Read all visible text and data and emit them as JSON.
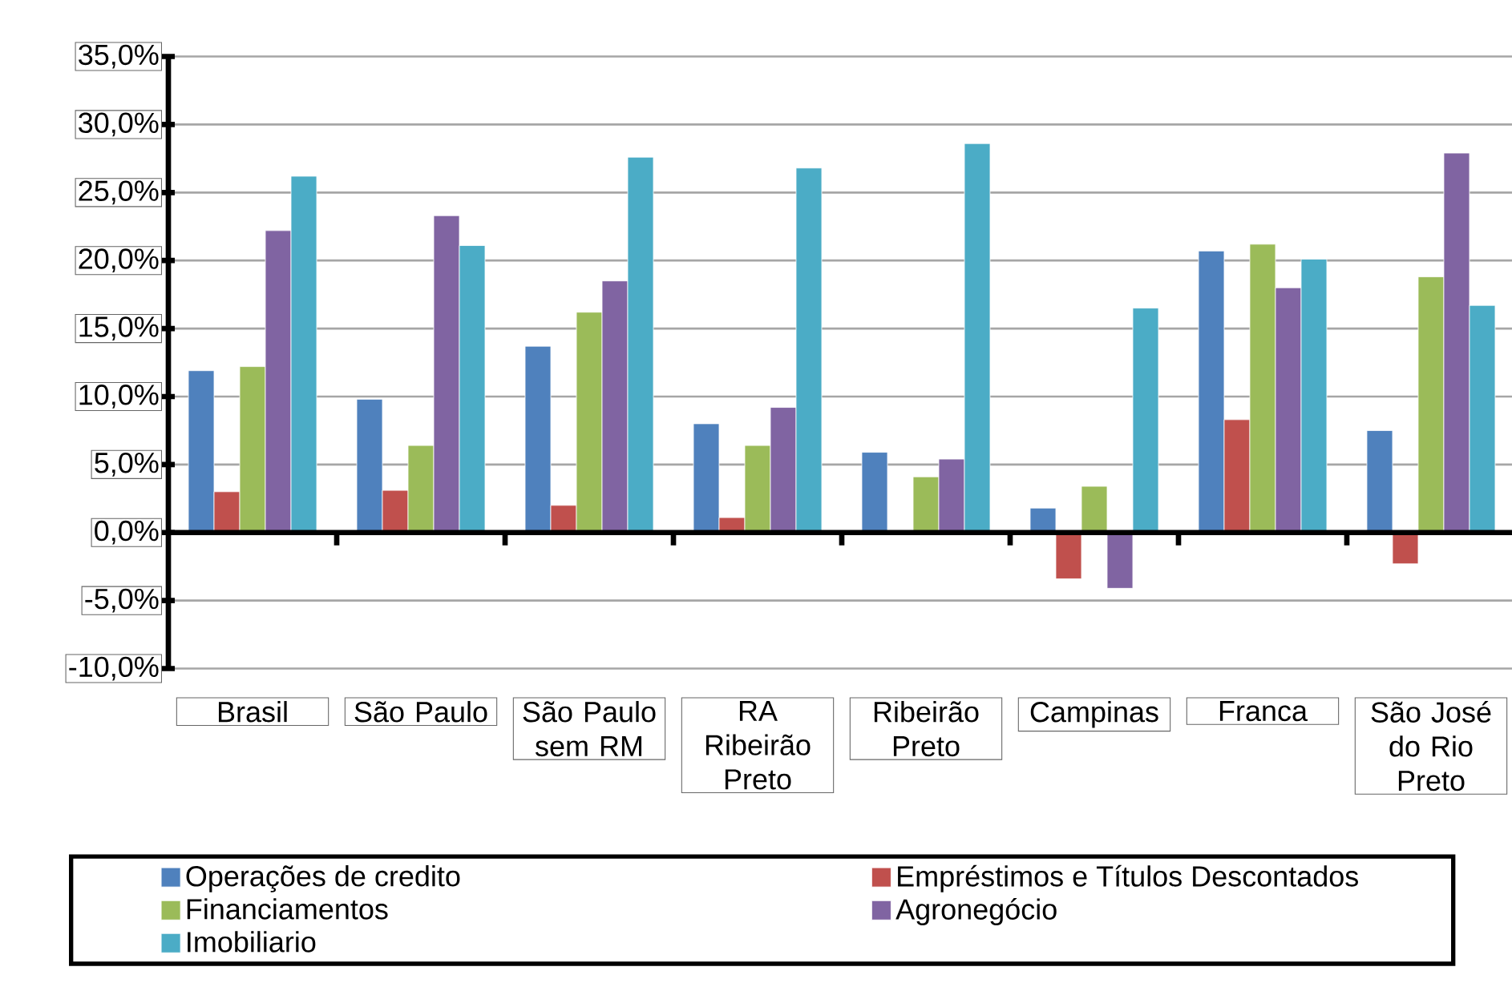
{
  "chart_data": {
    "type": "bar",
    "categories": [
      "Brasil",
      "São Paulo",
      "São Paulo sem RM",
      "RA Ribeirão Preto",
      "Ribeirão Preto",
      "Campinas",
      "Franca",
      "São José do Rio Preto"
    ],
    "series": [
      {
        "name": "Operações de credito",
        "color": "#4f81bd",
        "values": [
          11.9,
          9.8,
          13.7,
          8.0,
          5.9,
          1.8,
          20.7,
          7.5
        ]
      },
      {
        "name": "Empréstimos e Títulos Descontados",
        "color": "#c0504d",
        "values": [
          3.0,
          3.1,
          2.0,
          1.1,
          null,
          -3.4,
          8.3,
          -2.3
        ]
      },
      {
        "name": "Financiamentos",
        "color": "#9bbb59",
        "values": [
          12.2,
          6.4,
          16.2,
          6.4,
          4.1,
          3.4,
          21.2,
          18.8
        ]
      },
      {
        "name": "Agronegócio",
        "color": "#8064a2",
        "values": [
          22.2,
          23.3,
          18.5,
          9.2,
          5.4,
          -4.1,
          18.0,
          27.9
        ]
      },
      {
        "name": "Imobiliario",
        "color": "#4bacc6",
        "values": [
          26.2,
          21.1,
          27.6,
          26.8,
          28.6,
          16.5,
          20.1,
          16.7
        ]
      }
    ],
    "ylim": [
      -10,
      35
    ],
    "yticks": [
      {
        "value": -10,
        "label": "-10,0%"
      },
      {
        "value": -5,
        "label": "-5,0%"
      },
      {
        "value": 0,
        "label": "0,0%"
      },
      {
        "value": 5,
        "label": "5,0%"
      },
      {
        "value": 10,
        "label": "10,0%"
      },
      {
        "value": 15,
        "label": "15,0%"
      },
      {
        "value": 20,
        "label": "20,0%"
      },
      {
        "value": 25,
        "label": "25,0%"
      },
      {
        "value": 30,
        "label": "30,0%"
      },
      {
        "value": 35,
        "label": "35,0%"
      }
    ],
    "grid": "y",
    "legend": "bottom"
  }
}
